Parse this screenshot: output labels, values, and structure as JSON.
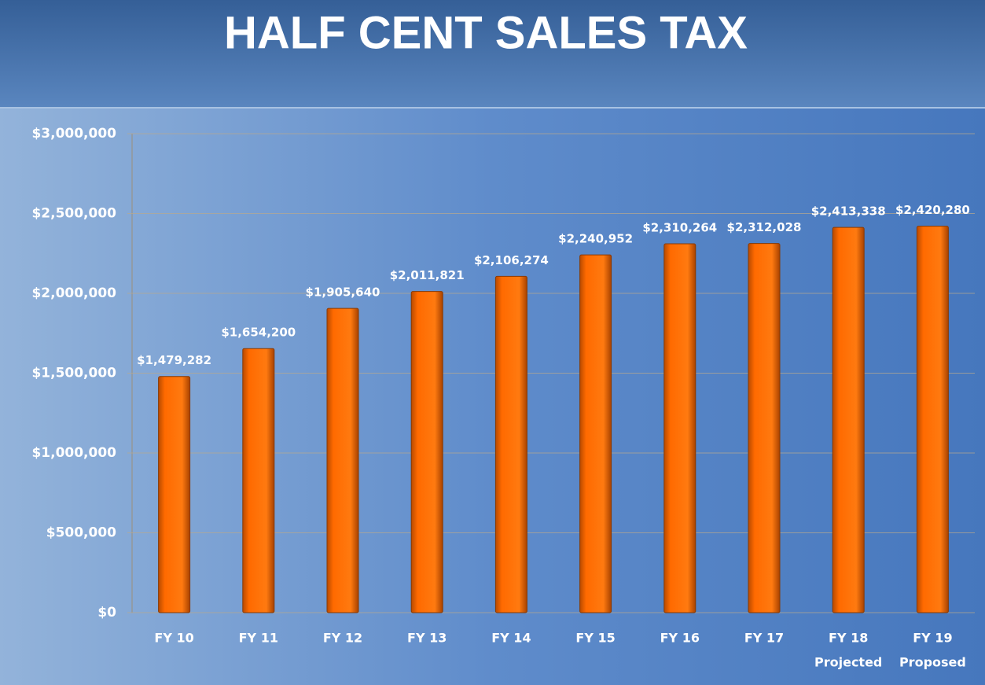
{
  "chart_data": {
    "type": "bar",
    "title": "HALF CENT SALES TAX",
    "categories": [
      "FY 10",
      "FY 11",
      "FY 12",
      "FY 13",
      "FY 14",
      "FY 15",
      "FY 16",
      "FY 17",
      "FY 18",
      "FY 19"
    ],
    "category_sublabels": [
      null,
      null,
      null,
      null,
      null,
      null,
      null,
      null,
      "Projected",
      "Proposed"
    ],
    "values": [
      1479282,
      1654200,
      1905640,
      2011821,
      2106274,
      2240952,
      2310264,
      2312028,
      2413338,
      2420280
    ],
    "value_labels": [
      "$1,479,282",
      "$1,654,200",
      "$1,905,640",
      "$2,011,821",
      "$2,106,274",
      "$2,240,952",
      "$2,310,264",
      "$2,312,028",
      "$2,413,338",
      "$2,420,280"
    ],
    "color": "#ff6a00",
    "ylim": [
      0,
      3000000
    ],
    "yticks": [
      {
        "value": 0,
        "label": "$0"
      },
      {
        "value": 500000,
        "label": "$500,000"
      },
      {
        "value": 1000000,
        "label": "$1,000,000"
      },
      {
        "value": 1500000,
        "label": "$1,500,000"
      },
      {
        "value": 2000000,
        "label": "$2,000,000"
      },
      {
        "value": 2500000,
        "label": "$2,500,000"
      },
      {
        "value": 3000000,
        "label": "$3,000,000"
      }
    ],
    "grid": true
  }
}
